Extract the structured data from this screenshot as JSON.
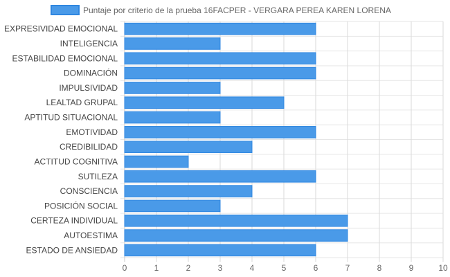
{
  "chart_data": {
    "type": "bar",
    "orientation": "horizontal",
    "categories": [
      "EXPRESIVIDAD EMOCIONAL",
      "INTELIGENCIA",
      "ESTABILIDAD EMOCIONAL",
      "DOMINACIÓN",
      "IMPULSIVIDAD",
      "LEALTAD GRUPAL",
      "APTITUD SITUACIONAL",
      "EMOTIVIDAD",
      "CREDIBILIDAD",
      "ACTITUD COGNITIVA",
      "SUTILEZA",
      "CONSCIENCIA",
      "POSICIÓN SOCIAL",
      "CERTEZA INDIVIDUAL",
      "AUTOESTIMA",
      "ESTADO DE ANSIEDAD"
    ],
    "series": [
      {
        "name": "Puntaje por criterio de la prueba 16FACPER - VERGARA PEREA KAREN LORENA",
        "values": [
          6,
          3,
          6,
          6,
          3,
          5,
          3,
          6,
          4,
          2,
          6,
          4,
          3,
          7,
          7,
          6
        ],
        "color": "#4a9ae8",
        "border_color": "#2e86e0"
      }
    ],
    "xlim": [
      0,
      10
    ],
    "x_ticks": [
      "0",
      "1",
      "2",
      "3",
      "4",
      "5",
      "6",
      "7",
      "8",
      "9",
      "10"
    ],
    "grid": true,
    "legend_position": "top"
  }
}
